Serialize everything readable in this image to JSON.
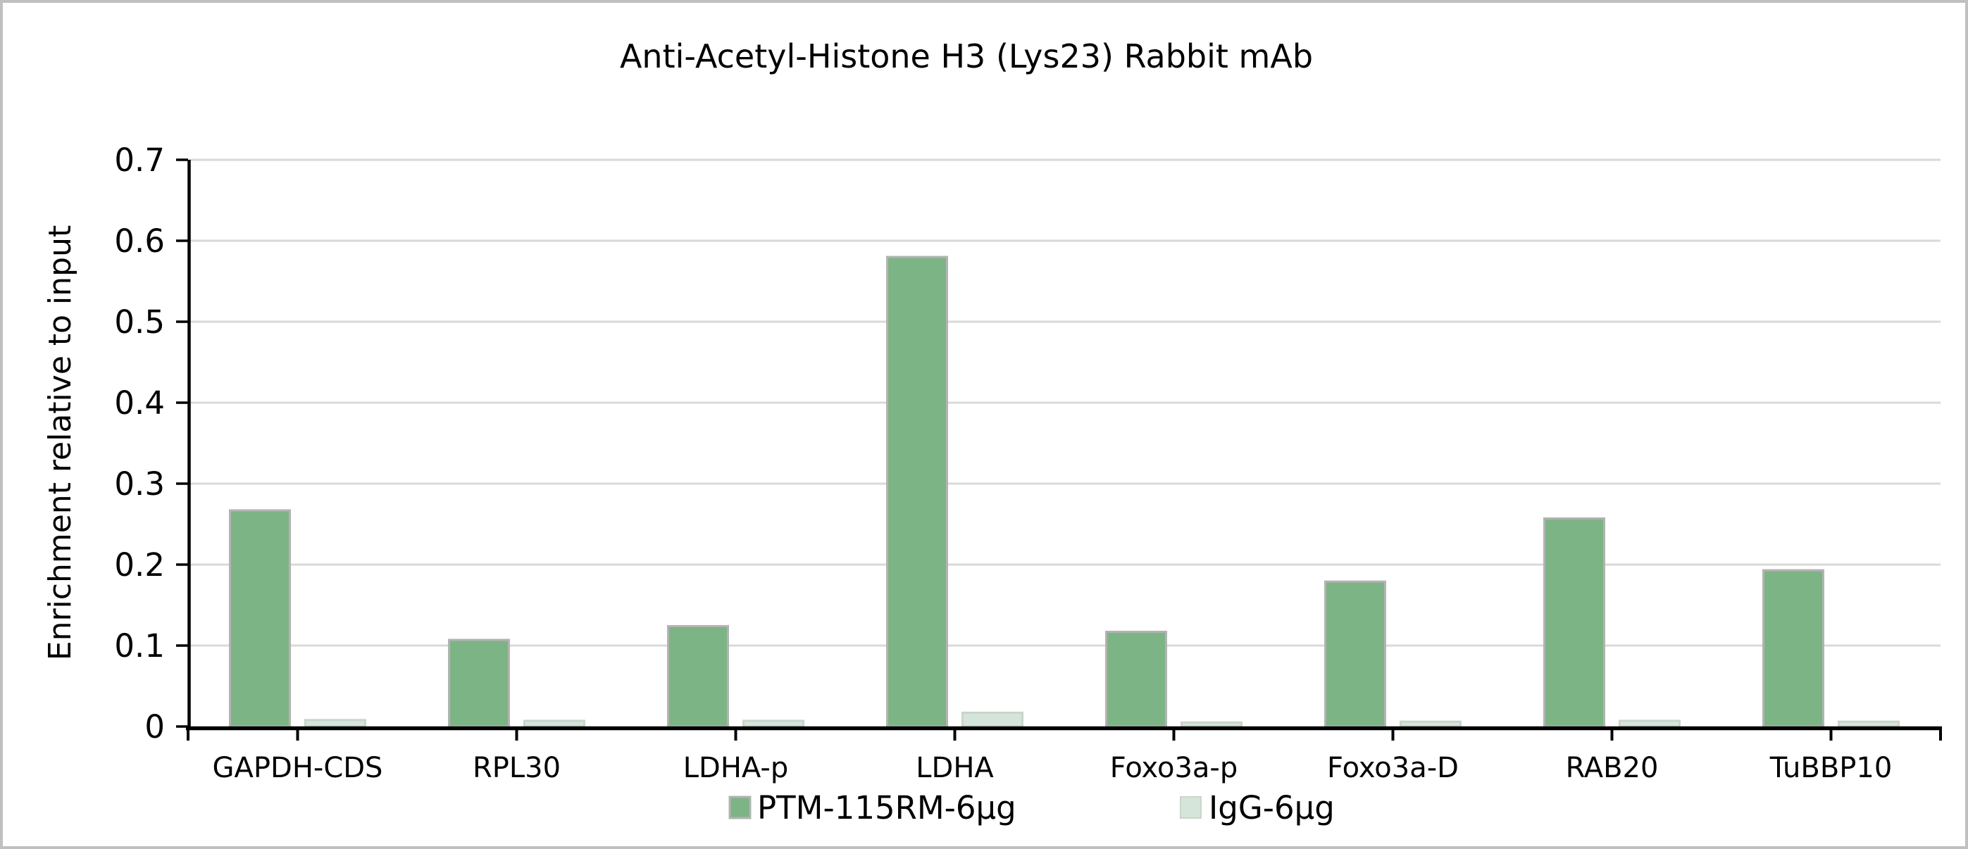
{
  "window": {
    "background": "#ffffff",
    "frame_border_color": "#c0c0c0"
  },
  "chart_data": {
    "type": "bar",
    "title": "Anti-Acetyl-Histone H3 (Lys23) Rabbit mAb",
    "xlabel": "",
    "ylabel": "Enrichment relative to input",
    "categories": [
      "GAPDH-CDS",
      "RPL30",
      "LDHA-p",
      "LDHA",
      "Foxo3a-p",
      "Foxo3a-D",
      "RAB20",
      "TuBBP10"
    ],
    "series": [
      {
        "name": "PTM-115RM-6µg",
        "color": "#7db485",
        "border_color": "#b3b3b3",
        "values": [
          0.267,
          0.107,
          0.124,
          0.58,
          0.117,
          0.179,
          0.257,
          0.193
        ]
      },
      {
        "name": "IgG-6µg",
        "color": "#d6e5da",
        "border_color": "#c9d5ca",
        "values": [
          0.008,
          0.007,
          0.007,
          0.017,
          0.005,
          0.006,
          0.007,
          0.006
        ]
      }
    ],
    "ylim": [
      0,
      0.7
    ],
    "yticks": [
      0,
      0.1,
      0.2,
      0.3,
      0.4,
      0.5,
      0.6,
      0.7
    ],
    "ytick_labels": [
      "0",
      "0.1",
      "0.2",
      "0.3",
      "0.4",
      "0.5",
      "0.6",
      "0.7"
    ],
    "grid": "horizontal",
    "gridline_color": "#d9d9d9",
    "axis_color": "#000000",
    "legend_position": "bottom-center",
    "plot_background": "#ffffff"
  }
}
